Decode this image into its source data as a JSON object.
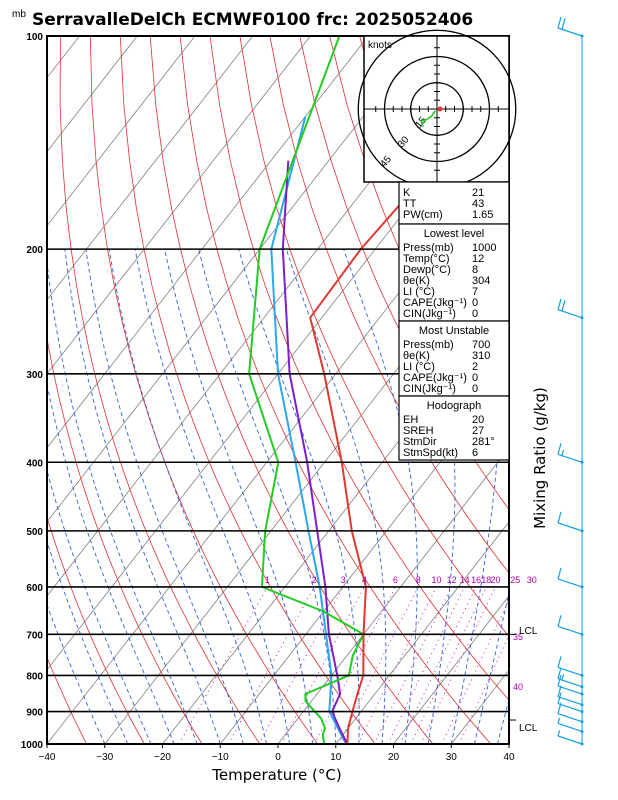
{
  "chart_data": {
    "type": "skew-t log-p sounding",
    "title": "SerravalleDelCh  ECMWF0100  frc: 2025052406",
    "pressure_unit": "mb",
    "xlabel": "Temperature (°C)",
    "ylabel_right": "Mixing Ratio (g/kg)",
    "xlim": [
      -40,
      40
    ],
    "ylim_hPa": [
      1000,
      100
    ],
    "x_ticks": [
      "−40",
      "−30",
      "−20",
      "−10",
      "0",
      "10",
      "20",
      "30",
      "40"
    ],
    "p_ticks": [
      "100",
      "200",
      "300",
      "400",
      "500",
      "600",
      "700",
      "800",
      "900",
      "1000"
    ],
    "mixing_ratio_labels": [
      "1",
      "2",
      "3",
      "4",
      "6",
      "8",
      "10",
      "12",
      "14",
      "16",
      "18",
      "20",
      "25",
      "30"
    ],
    "theta_e_labels": [
      "35",
      "40"
    ],
    "lcl_labels": [
      "LCL",
      "LCL"
    ],
    "temperature_profile": [
      [
        1000,
        12
      ],
      [
        950,
        10
      ],
      [
        900,
        8.5
      ],
      [
        850,
        7
      ],
      [
        800,
        5.5
      ],
      [
        700,
        0
      ],
      [
        600,
        -6
      ],
      [
        500,
        -16
      ],
      [
        400,
        -27
      ],
      [
        300,
        -42
      ],
      [
        250,
        -52
      ],
      [
        200,
        -52.5
      ],
      [
        150,
        -51
      ],
      [
        100,
        -50
      ]
    ],
    "dewpoint_profile": [
      [
        1000,
        8
      ],
      [
        970,
        6.5
      ],
      [
        950,
        6
      ],
      [
        920,
        4
      ],
      [
        900,
        2
      ],
      [
        870,
        -1
      ],
      [
        850,
        -2
      ],
      [
        800,
        3
      ],
      [
        750,
        1
      ],
      [
        700,
        0
      ],
      [
        650,
        -10
      ],
      [
        600,
        -24
      ],
      [
        500,
        -31
      ],
      [
        400,
        -38
      ],
      [
        300,
        -55
      ],
      [
        200,
        -70
      ],
      [
        100,
        -85
      ]
    ],
    "parcel_profile": [
      [
        1000,
        12
      ],
      [
        950,
        8.5
      ],
      [
        900,
        5
      ],
      [
        850,
        4
      ],
      [
        800,
        1
      ],
      [
        700,
        -6
      ],
      [
        600,
        -13
      ],
      [
        500,
        -22
      ],
      [
        400,
        -33
      ],
      [
        300,
        -48
      ],
      [
        200,
        -66
      ],
      [
        150,
        -77
      ]
    ],
    "lowest_level_virtual_curve": [
      [
        1000,
        11.8
      ],
      [
        900,
        4.5
      ],
      [
        800,
        0
      ],
      [
        700,
        -6.5
      ],
      [
        600,
        -14
      ],
      [
        500,
        -23.5
      ],
      [
        400,
        -35
      ],
      [
        300,
        -50
      ],
      [
        200,
        -68
      ],
      [
        130,
        -80
      ]
    ],
    "indices": {
      "header": [
        [
          "K",
          "21"
        ],
        [
          "TT",
          "43"
        ],
        [
          "PW(cm)",
          "1.65"
        ]
      ],
      "lowest_level": {
        "title": "Lowest level",
        "rows": [
          [
            "Press(mb)",
            "1000"
          ],
          [
            "Temp(°C)",
            "12"
          ],
          [
            "Dewp(°C)",
            "8"
          ],
          [
            "θe(K)",
            "304"
          ],
          [
            "LI  (°C)",
            "7"
          ],
          [
            "CAPE(Jkg⁻¹)",
            "0"
          ],
          [
            "CIN(Jkg⁻¹)",
            "0"
          ]
        ]
      },
      "most_unstable": {
        "title": "Most Unstable",
        "rows": [
          [
            "Press(mb)",
            "700"
          ],
          [
            "θe(K)",
            "310"
          ],
          [
            "LI  (°C)",
            "2"
          ],
          [
            "CAPE(Jkg⁻¹)",
            "0"
          ],
          [
            "CIN(Jkg⁻¹)",
            "0"
          ]
        ]
      },
      "hodograph": {
        "title": "Hodograph",
        "rows": [
          [
            "EH",
            "20"
          ],
          [
            "SREH",
            "27"
          ],
          [
            "StmDir",
            "281°"
          ],
          [
            "StmSpd(kt)",
            "6"
          ]
        ]
      }
    },
    "hodograph_inset": {
      "label": "knots",
      "ring_labels": [
        "15",
        "30",
        "45"
      ],
      "points": [
        [
          -1,
          -1
        ],
        [
          -3,
          -4
        ],
        [
          -6,
          -6
        ],
        [
          -9,
          -7
        ],
        [
          -8,
          -10
        ]
      ]
    },
    "wind_barbs": [
      [
        100,
        20
      ],
      [
        250,
        20
      ],
      [
        400,
        15
      ],
      [
        500,
        10
      ],
      [
        600,
        10
      ],
      [
        700,
        10
      ],
      [
        800,
        10
      ],
      [
        830,
        15
      ],
      [
        850,
        10
      ],
      [
        880,
        10
      ],
      [
        900,
        10
      ],
      [
        930,
        10
      ],
      [
        960,
        5
      ],
      [
        1000,
        5
      ]
    ],
    "colors": {
      "temperature": "#e0392f",
      "dewpoint": "#22cc22",
      "parcel": "#7c1ecc",
      "virtual": "#2aa8f0",
      "isotherm": "#808080",
      "dry_adiabat": "#e03030",
      "moist_adiabat": "#3060e0",
      "mixing_ratio": "#c000c0",
      "wind": "#10a0e8"
    }
  }
}
